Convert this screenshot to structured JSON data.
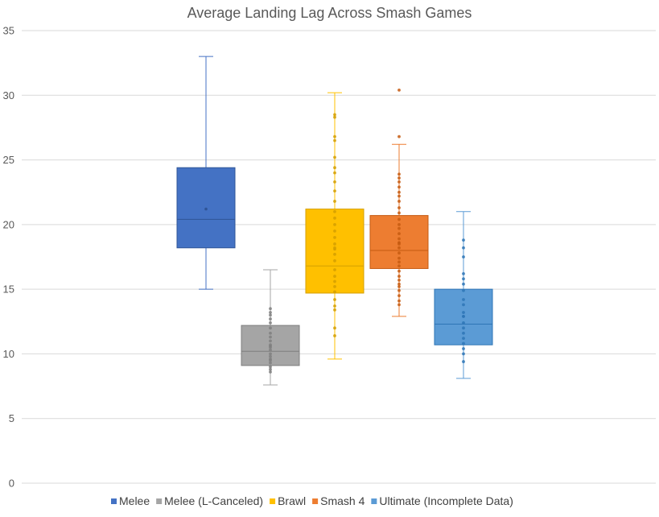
{
  "chart_data": {
    "type": "box",
    "title": "Average Landing Lag Across Smash Games",
    "xlabel": "",
    "ylabel": "",
    "ylim": [
      0,
      35
    ],
    "yticks": [
      0,
      5,
      10,
      15,
      20,
      25,
      30,
      35
    ],
    "grid": true,
    "legend_position": "bottom",
    "series": [
      {
        "name": "Melee",
        "color": "#4472C4",
        "stroke": "#2F5597",
        "min": 15,
        "q1": 18.2,
        "median": 20.4,
        "q3": 24.4,
        "max": 33,
        "mean": 21.2,
        "points": []
      },
      {
        "name": "Melee (L-Canceled)",
        "color": "#A5A5A5",
        "stroke": "#7F7F7F",
        "min": 7.6,
        "q1": 9.1,
        "median": 10.2,
        "q3": 12.2,
        "max": 16.5,
        "mean": 10.6,
        "points": [
          8.6,
          8.8,
          9.0,
          9.3,
          9.5,
          9.6,
          9.8,
          10.0,
          10.3,
          10.5,
          10.7,
          11.0,
          11.3,
          11.6,
          12.0,
          12.4,
          12.7,
          13.0,
          13.2,
          13.5
        ]
      },
      {
        "name": "Brawl",
        "color": "#FFC000",
        "stroke": "#D49F00",
        "min": 9.6,
        "q1": 14.7,
        "median": 16.8,
        "q3": 21.2,
        "max": 30.2,
        "mean": 18.1,
        "points": [
          11.4,
          12.0,
          13.4,
          13.7,
          14.2,
          14.8,
          15.2,
          15.6,
          16.0,
          16.5,
          17.2,
          17.7,
          18.2,
          18.5,
          19.0,
          19.5,
          20.0,
          20.5,
          21.0,
          21.8,
          22.6,
          23.3,
          24.0,
          24.4,
          25.2,
          26.5,
          26.8,
          28.3,
          28.5
        ]
      },
      {
        "name": "Smash 4",
        "color": "#ED7D31",
        "stroke": "#C55A11",
        "min": 12.9,
        "q1": 16.6,
        "median": 18.0,
        "q3": 20.7,
        "max": 26.2,
        "mean": 18.6,
        "points": [
          13.8,
          14.1,
          14.5,
          14.9,
          15.2,
          15.4,
          15.7,
          16.0,
          16.4,
          16.8,
          17.1,
          17.4,
          17.8,
          18.2,
          18.5,
          18.9,
          19.3,
          19.7,
          20.0,
          20.4,
          20.9,
          21.3,
          21.8,
          22.2,
          22.5,
          22.9,
          23.3,
          23.6,
          23.9,
          26.8,
          30.4
        ]
      },
      {
        "name": "Ultimate (Incomplete Data)",
        "color": "#5B9BD5",
        "stroke": "#2E75B6",
        "min": 8.1,
        "q1": 10.7,
        "median": 12.3,
        "q3": 15.0,
        "max": 21.0,
        "mean": 12.9,
        "points": [
          9.4,
          10.0,
          10.4,
          10.8,
          11.2,
          11.6,
          12.0,
          12.4,
          12.9,
          13.2,
          13.8,
          14.2,
          14.9,
          15.4,
          15.8,
          16.2,
          17.5,
          18.2,
          18.8
        ]
      }
    ]
  }
}
